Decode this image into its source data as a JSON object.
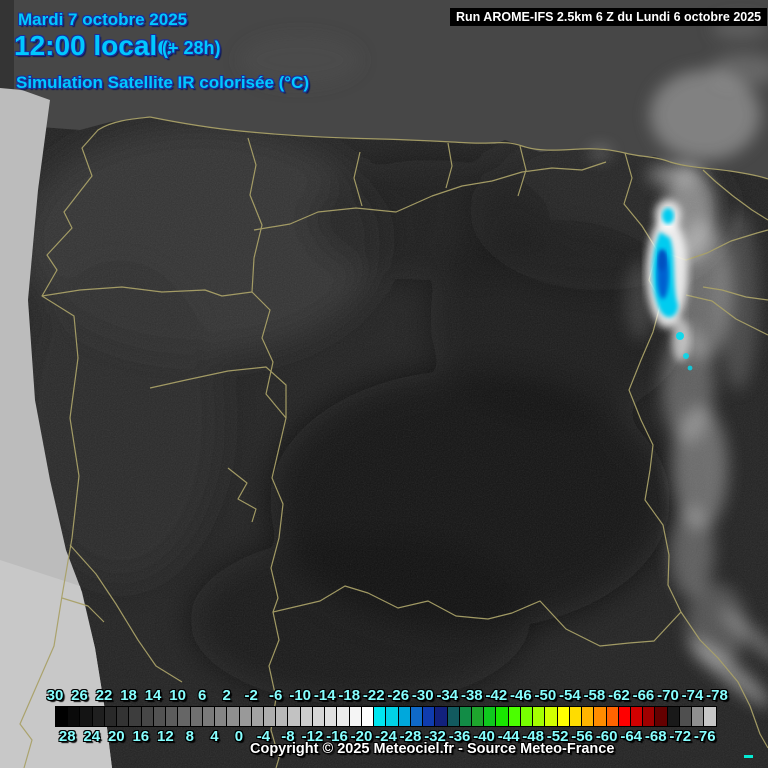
{
  "header": {
    "date_line": "Mardi 7 octobre 2025",
    "time_line": "12:00 locale",
    "time_offset": "(+ 28h)",
    "subtitle": "Simulation Satellite IR colorisée (°C)"
  },
  "run_info": {
    "label": "Run AROME-IFS 2.5km 6 Z du Lundi 6 octobre 2025"
  },
  "footer": {
    "copyright": "Copyright © 2025 Meteociel.fr - Source Meteo-France"
  },
  "colors": {
    "title_cyan": "#00C8FF",
    "title_outline": "#1c2f9b",
    "scale_label_cyan": "#87FFFF",
    "run_box_bg": "#000000",
    "run_box_text": "#FFFFFF",
    "sea_gray": "#474747",
    "no_data_gray": "#BCBCBC",
    "border_olive": "#A9A168",
    "cold_cloud_cyan": "#00CCF0",
    "cold_cloud_core_blue": "#0060D0"
  },
  "scale": {
    "unit": "°C",
    "top_labels": [
      30,
      26,
      22,
      18,
      14,
      10,
      6,
      2,
      -2,
      -6,
      -10,
      -14,
      -18,
      -22,
      -26,
      -30,
      -34,
      -38,
      -42,
      -46,
      -50,
      -54,
      -58,
      -62,
      -66,
      -70,
      -74,
      -78
    ],
    "bottom_labels": [
      28,
      24,
      20,
      16,
      12,
      8,
      4,
      0,
      -4,
      -8,
      -12,
      -16,
      -20,
      -24,
      -28,
      -32,
      -36,
      -40,
      -44,
      -48,
      -52,
      -56,
      -60,
      -64,
      -68,
      -72,
      -76
    ],
    "cell_colors": [
      "#000000",
      "#0A0A0A",
      "#141414",
      "#1F1F1F",
      "#292929",
      "#333333",
      "#3D3D3D",
      "#474747",
      "#525252",
      "#5C5C5C",
      "#666666",
      "#707070",
      "#7A7A7A",
      "#858585",
      "#8F8F8F",
      "#999999",
      "#A3A3A3",
      "#ADADAD",
      "#B8B8B8",
      "#C2C2C2",
      "#CCCCCC",
      "#D6D6D6",
      "#E0E0E0",
      "#EBEBEB",
      "#F5F5F5",
      "#FFFFFF",
      "#00E6F0",
      "#00D2E6",
      "#00A8DC",
      "#0F69C8",
      "#0F3CAF",
      "#12217D",
      "#125A5F",
      "#128C46",
      "#1EA52D",
      "#0FC81E",
      "#19E600",
      "#4BFF00",
      "#78FF00",
      "#A5FF00",
      "#D2FF00",
      "#FFFF00",
      "#FFDC00",
      "#FFB400",
      "#FF8C00",
      "#FF6400",
      "#FF0000",
      "#D20000",
      "#A00000",
      "#640000",
      "#191919",
      "#4F4F4F",
      "#8F8F8F",
      "#C6C6C6"
    ]
  }
}
